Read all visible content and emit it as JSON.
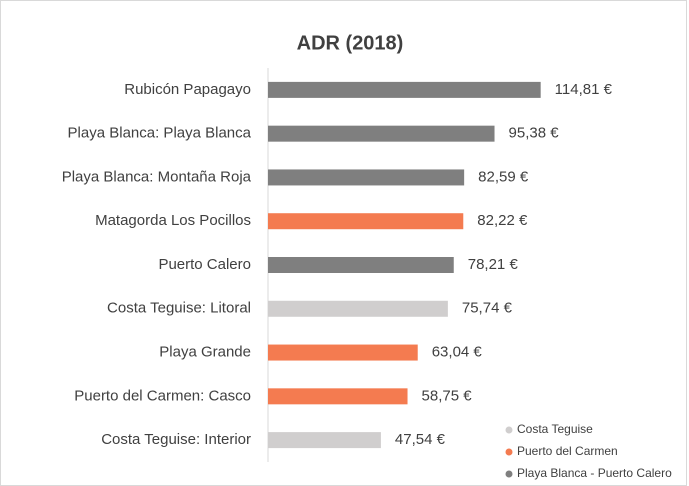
{
  "chart_data": {
    "type": "bar",
    "orientation": "horizontal",
    "title": "ADR (2018)",
    "categories": [
      "Rubicón Papagayo",
      "Playa Blanca: Playa Blanca",
      "Playa Blanca: Montaña Roja",
      "Matagorda Los Pocillos",
      "Puerto Calero",
      "Costa Teguise: Litoral",
      "Playa Grande",
      "Puerto del Carmen: Casco",
      "Costa Teguise: Interior"
    ],
    "values": [
      114.81,
      95.38,
      82.59,
      82.22,
      78.21,
      75.74,
      63.04,
      58.75,
      47.54
    ],
    "value_labels": [
      "114,81 €",
      "95,38 €",
      "82,59 €",
      "82,22 €",
      "78,21 €",
      "75,74 €",
      "63,04 €",
      "58,75 €",
      "47,54 €"
    ],
    "colors": [
      "#7f7f7f",
      "#7f7f7f",
      "#7f7f7f",
      "#f47b50",
      "#7f7f7f",
      "#d0cece",
      "#f47b50",
      "#f47b50",
      "#d0cece"
    ],
    "xlim": [
      0,
      120
    ],
    "legend_position": "lower right",
    "legend": [
      {
        "name": "Costa Teguise",
        "color": "#d0cece"
      },
      {
        "name": "Puerto del Carmen",
        "color": "#f47b50"
      },
      {
        "name": "Playa Blanca - Puerto Calero",
        "color": "#7f7f7f"
      }
    ]
  }
}
